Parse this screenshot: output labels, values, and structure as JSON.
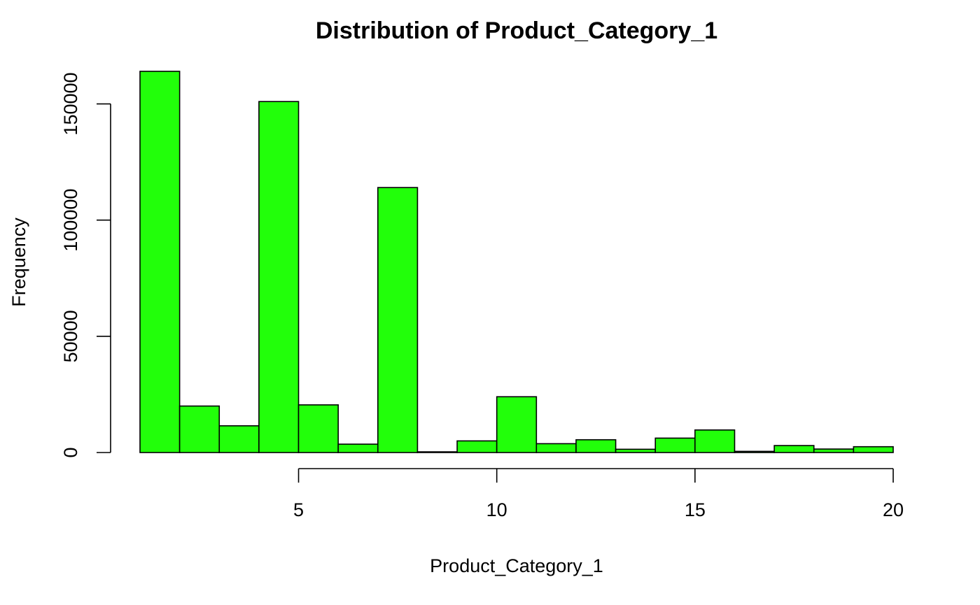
{
  "chart_data": {
    "type": "bar",
    "title": "Distribution of Product_Category_1",
    "xlabel": "Product_Category_1",
    "ylabel": "Frequency",
    "bin_edges": [
      1,
      2,
      3,
      4,
      5,
      6,
      7,
      8,
      9,
      10,
      11,
      12,
      13,
      14,
      15,
      16,
      17,
      18,
      19,
      20
    ],
    "values": [
      164000,
      20000,
      11500,
      151000,
      20500,
      3600,
      114000,
      300,
      5000,
      24000,
      3800,
      5500,
      1400,
      6200,
      9700,
      500,
      3000,
      1500,
      2500
    ],
    "x_ticks": [
      5,
      10,
      15,
      20
    ],
    "x_tick_labels": [
      "5",
      "10",
      "15",
      "20"
    ],
    "y_ticks": [
      0,
      50000,
      100000,
      150000
    ],
    "y_tick_labels": [
      "0",
      "50000",
      "100000",
      "150000"
    ],
    "xlim": [
      1,
      20
    ],
    "ylim": [
      0,
      164000
    ],
    "bar_color": "#22ff0a",
    "grid": false,
    "legend": "none"
  }
}
